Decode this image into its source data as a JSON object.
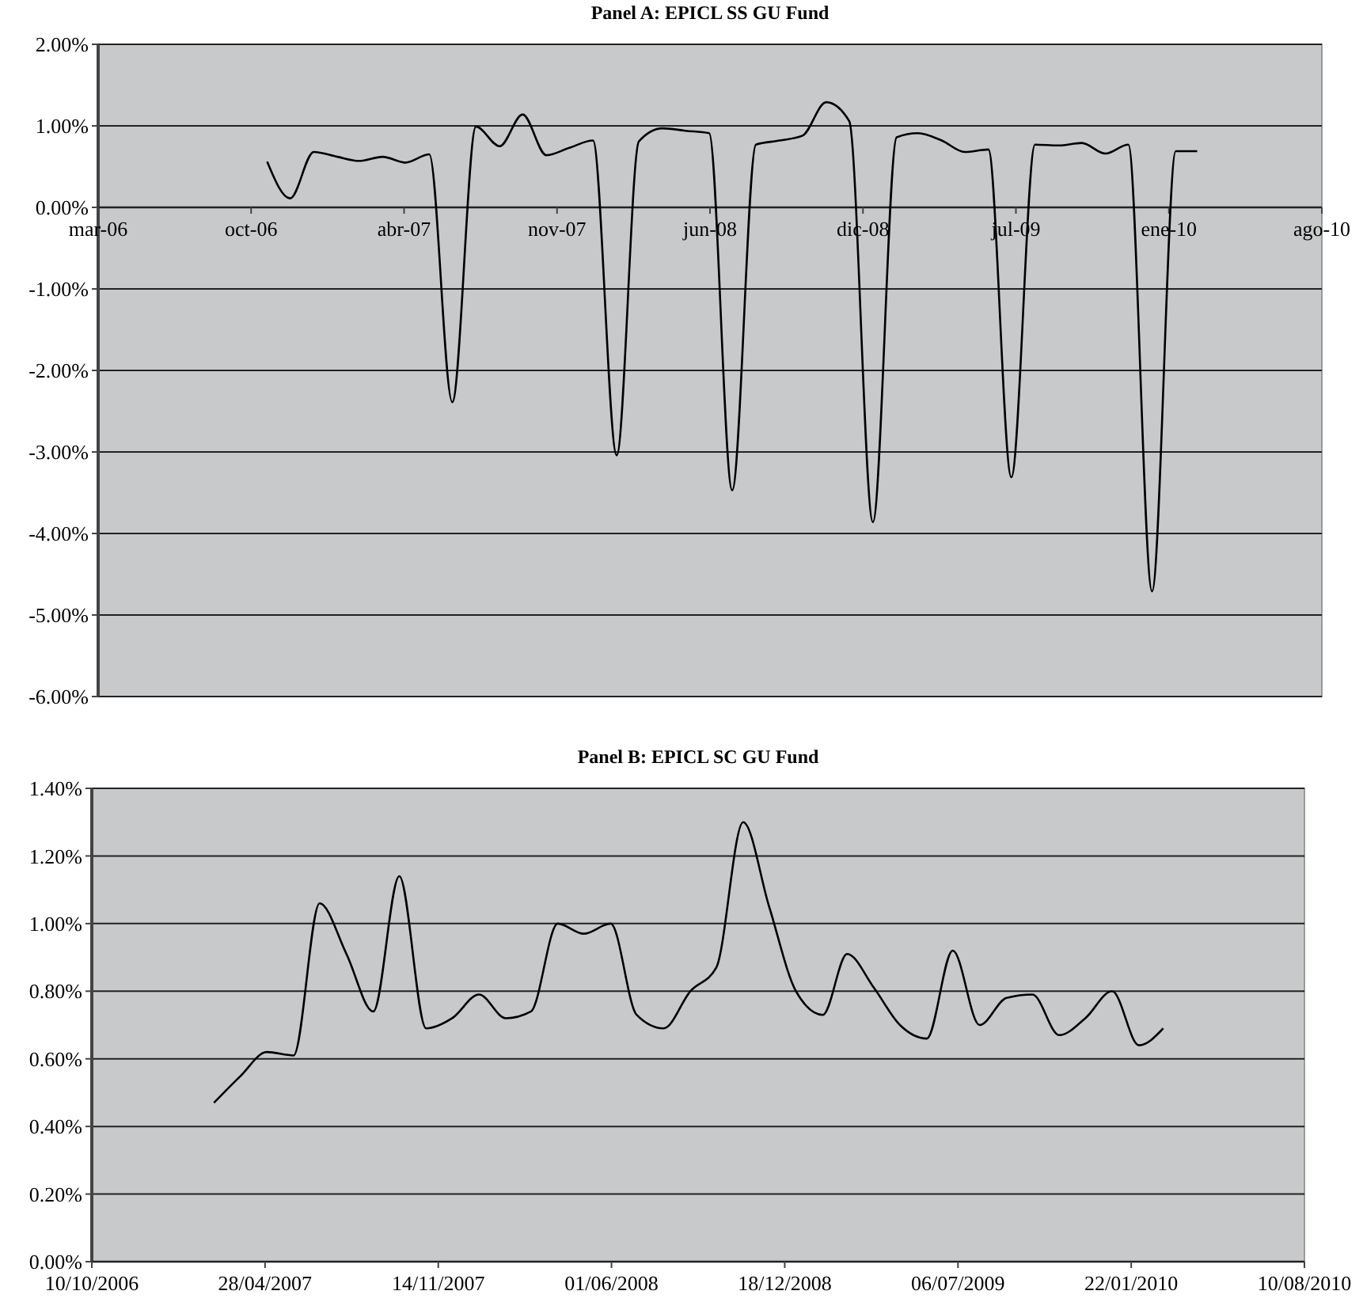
{
  "chart_data": [
    {
      "type": "line",
      "title": "Panel A: EPICL SS GU Fund",
      "color": "#000000",
      "grid": "y",
      "x": [
        "2006-10-31",
        "2006-11-30",
        "2006-12-31",
        "2007-01-31",
        "2007-02-28",
        "2007-03-31",
        "2007-04-30",
        "2007-05-31",
        "2007-06-30",
        "2007-07-31",
        "2007-08-31",
        "2007-09-30",
        "2007-10-31",
        "2007-11-30",
        "2007-12-31",
        "2008-01-31",
        "2008-02-29",
        "2008-03-31",
        "2008-04-30",
        "2008-05-31",
        "2008-06-30",
        "2008-07-31",
        "2008-08-31",
        "2008-09-30",
        "2008-10-31",
        "2008-11-30",
        "2008-12-31",
        "2009-01-31",
        "2009-02-28",
        "2009-03-31",
        "2009-04-30",
        "2009-05-31",
        "2009-06-30",
        "2009-07-31",
        "2009-08-31",
        "2009-09-30",
        "2009-10-31",
        "2009-11-30",
        "2009-12-31",
        "2010-01-31",
        "2010-02-28"
      ],
      "values": [
        0.56,
        0.11,
        0.68,
        0.62,
        0.57,
        0.62,
        0.55,
        0.65,
        -2.39,
        0.99,
        0.75,
        1.14,
        0.64,
        0.73,
        0.82,
        -3.04,
        0.81,
        0.97,
        0.94,
        0.91,
        -3.47,
        0.77,
        0.82,
        0.88,
        1.29,
        1.06,
        -3.86,
        0.86,
        0.91,
        0.82,
        0.68,
        0.71,
        -3.31,
        0.77,
        0.76,
        0.79,
        0.66,
        0.77,
        -4.71,
        0.69,
        0.69
      ],
      "xlim": [
        "2006-03-24",
        "2010-08-10"
      ],
      "xticks": [
        {
          "value": "2006-03-24",
          "label": "mar-06"
        },
        {
          "value": "2006-10-10",
          "label": "oct-06"
        },
        {
          "value": "2007-04-28",
          "label": "abr-07"
        },
        {
          "value": "2007-11-14",
          "label": "nov-07"
        },
        {
          "value": "2008-06-01",
          "label": "jun-08"
        },
        {
          "value": "2008-12-18",
          "label": "dic-08"
        },
        {
          "value": "2009-07-06",
          "label": "jul-09"
        },
        {
          "value": "2010-01-22",
          "label": "ene-10"
        },
        {
          "value": "2010-08-10",
          "label": "ago-10"
        }
      ],
      "ylim": [
        -6,
        2
      ],
      "yticks": [
        {
          "value": -6,
          "label": "-6.00%"
        },
        {
          "value": -5,
          "label": "-5.00%"
        },
        {
          "value": -4,
          "label": "-4.00%"
        },
        {
          "value": -3,
          "label": "-3.00%"
        },
        {
          "value": -2,
          "label": "-2.00%"
        },
        {
          "value": -1,
          "label": "-1.00%"
        },
        {
          "value": 0,
          "label": "0.00%"
        },
        {
          "value": 1,
          "label": "1.00%"
        },
        {
          "value": 2,
          "label": "2.00%"
        }
      ]
    },
    {
      "type": "line",
      "title": "Panel B: EPICL SC GU Fund",
      "color": "#000000",
      "grid": "y",
      "x": [
        "2007-02-28",
        "2007-03-31",
        "2007-04-30",
        "2007-05-31",
        "2007-06-30",
        "2007-07-31",
        "2007-08-31",
        "2007-09-30",
        "2007-10-31",
        "2007-11-30",
        "2007-12-31",
        "2008-01-31",
        "2008-02-29",
        "2008-03-31",
        "2008-04-30",
        "2008-05-31",
        "2008-06-30",
        "2008-07-31",
        "2008-08-31",
        "2008-09-30",
        "2008-10-31",
        "2008-11-30",
        "2008-12-31",
        "2009-01-31",
        "2009-02-28",
        "2009-03-31",
        "2009-04-30",
        "2009-05-31",
        "2009-06-30",
        "2009-07-31",
        "2009-08-31",
        "2009-09-30",
        "2009-10-31",
        "2009-11-30",
        "2009-12-31",
        "2010-01-31",
        "2010-02-28"
      ],
      "values": [
        0.47,
        0.55,
        0.62,
        0.61,
        1.06,
        0.91,
        0.74,
        1.14,
        0.69,
        0.72,
        0.79,
        0.72,
        0.74,
        1.0,
        0.97,
        1.0,
        0.73,
        0.69,
        0.8,
        0.87,
        1.3,
        1.05,
        0.8,
        0.73,
        0.91,
        0.81,
        0.7,
        0.66,
        0.92,
        0.7,
        0.78,
        0.79,
        0.67,
        0.72,
        0.8,
        0.64,
        0.69
      ],
      "xlim": [
        "2006-10-10",
        "2010-08-10"
      ],
      "xticks": [
        {
          "value": "2006-10-10",
          "label": "10/10/2006"
        },
        {
          "value": "2007-04-28",
          "label": "28/04/2007"
        },
        {
          "value": "2007-11-14",
          "label": "14/11/2007"
        },
        {
          "value": "2008-06-01",
          "label": "01/06/2008"
        },
        {
          "value": "2008-12-18",
          "label": "18/12/2008"
        },
        {
          "value": "2009-07-06",
          "label": "06/07/2009"
        },
        {
          "value": "2010-01-22",
          "label": "22/01/2010"
        },
        {
          "value": "2010-08-10",
          "label": "10/08/2010"
        }
      ],
      "ylim": [
        0,
        1.4
      ],
      "yticks": [
        {
          "value": 0,
          "label": "0.00%"
        },
        {
          "value": 0.2,
          "label": "0.20%"
        },
        {
          "value": 0.4,
          "label": "0.40%"
        },
        {
          "value": 0.6,
          "label": "0.60%"
        },
        {
          "value": 0.8,
          "label": "0.80%"
        },
        {
          "value": 1.0,
          "label": "1.00%"
        },
        {
          "value": 1.2,
          "label": "1.20%"
        },
        {
          "value": 1.4,
          "label": "1.40%"
        }
      ]
    }
  ]
}
